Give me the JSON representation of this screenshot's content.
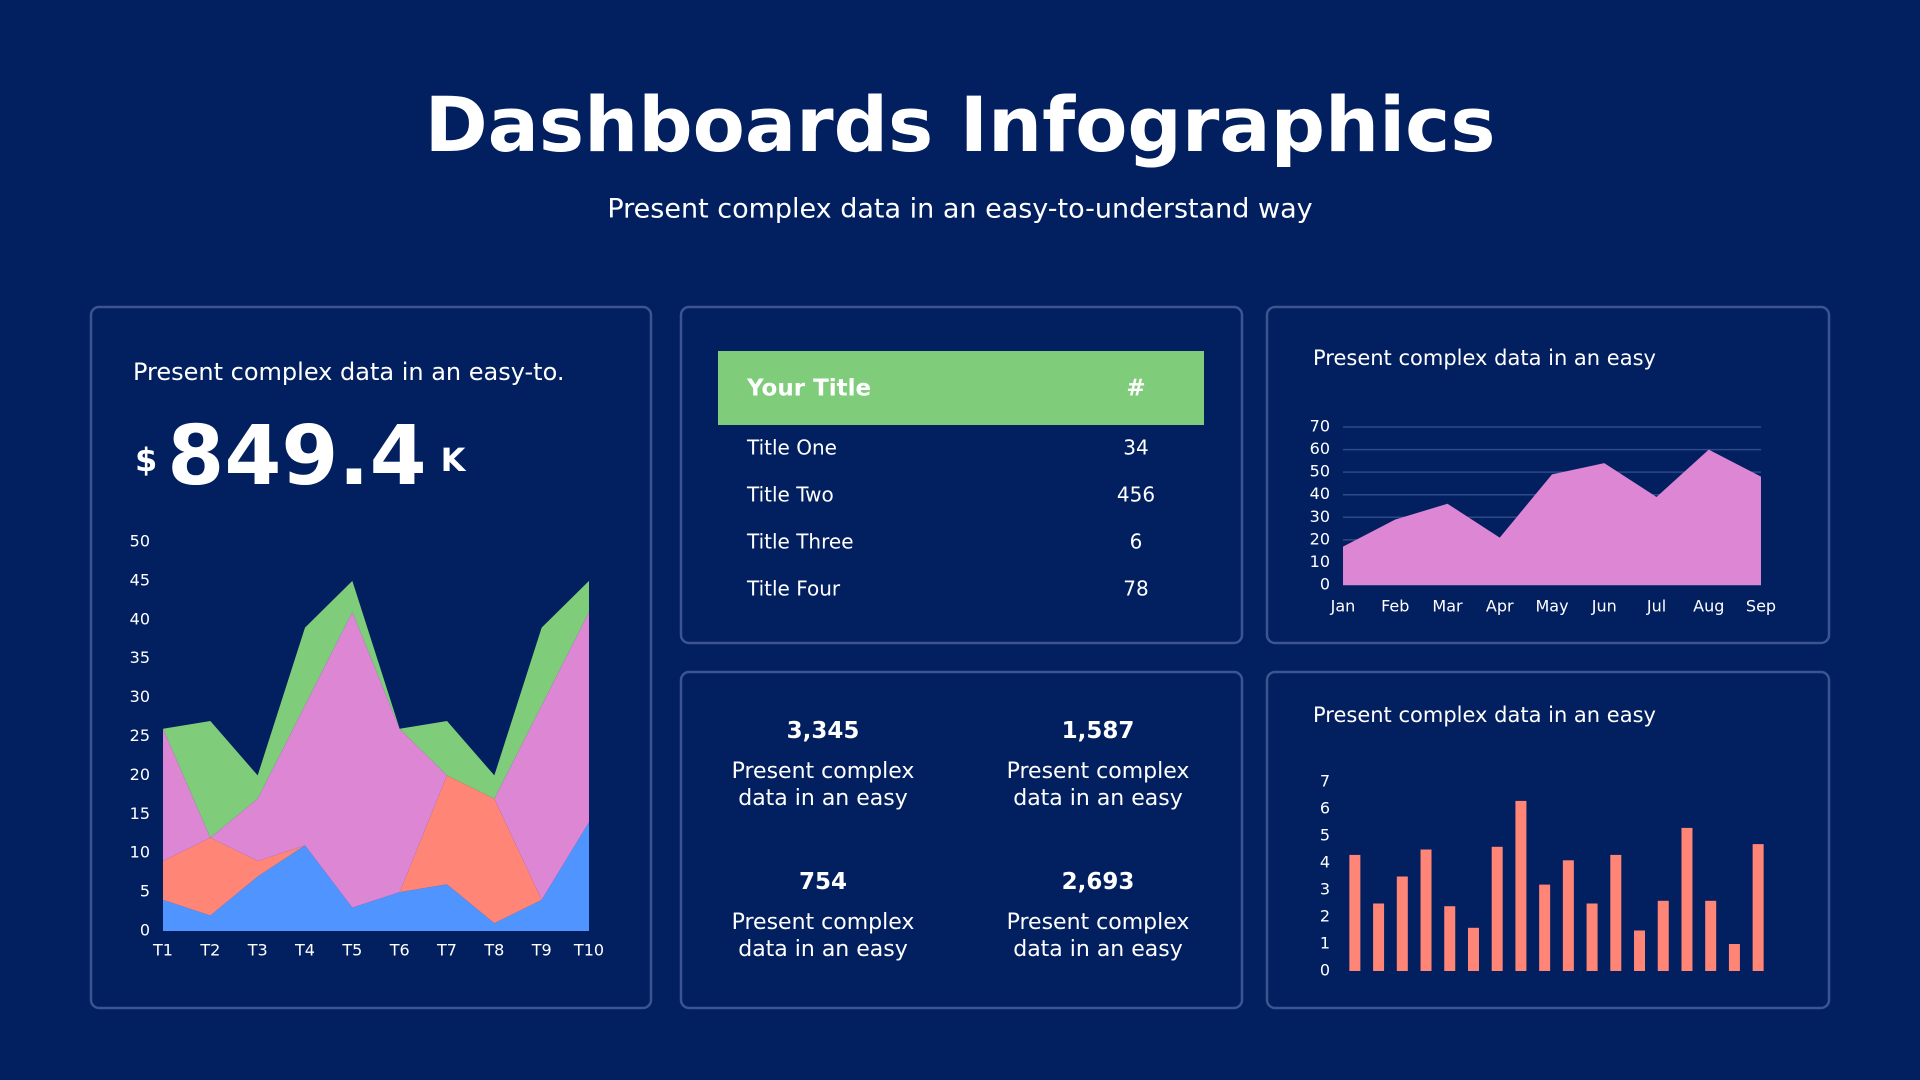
{
  "header": {
    "title": "Dashboards Infographics",
    "subtitle": "Present complex data in an easy-to-understand way"
  },
  "kpi": {
    "caption": "Present complex data in an easy-to.",
    "prefix": "$",
    "value": "849.4",
    "suffix": "K"
  },
  "table": {
    "header": [
      "Your Title",
      "#"
    ],
    "rows": [
      [
        "Title One",
        34
      ],
      [
        "Title Two",
        456
      ],
      [
        "Title Three",
        6
      ],
      [
        "Title Four",
        78
      ]
    ]
  },
  "stats": [
    {
      "value": "3,345",
      "text": "Present complex data in an easy"
    },
    {
      "value": "1,587",
      "text": "Present complex data in an easy"
    },
    {
      "value": "754",
      "text": "Present complex data in an easy"
    },
    {
      "value": "2,693",
      "text": "Present complex data in an easy"
    }
  ],
  "chart_data": [
    {
      "type": "area",
      "stacked": true,
      "categories": [
        "T1",
        "T2",
        "T3",
        "T4",
        "T5",
        "T6",
        "T7",
        "T8",
        "T9",
        "T10"
      ],
      "ylim": [
        0,
        50
      ],
      "yticks": [
        0,
        5,
        10,
        15,
        20,
        25,
        30,
        35,
        40,
        45,
        50
      ],
      "series": [
        {
          "color": "#4f94ff",
          "values": [
            4,
            2,
            7,
            11,
            3,
            5,
            6,
            1,
            4,
            14
          ]
        },
        {
          "color": "#ff8577",
          "values": [
            5,
            10,
            2,
            0,
            0,
            0,
            14,
            16,
            0,
            0
          ]
        },
        {
          "color": "#dd86d4",
          "values": [
            17,
            0,
            8,
            18,
            38,
            21,
            0,
            0,
            25,
            27
          ]
        },
        {
          "color": "#7fcd7b",
          "values": [
            0,
            15,
            3,
            10,
            4,
            0,
            7,
            3,
            10,
            4
          ]
        }
      ]
    },
    {
      "type": "area",
      "title": "Present complex data in an easy",
      "categories": [
        "Jan",
        "Feb",
        "Mar",
        "Apr",
        "May",
        "Jun",
        "Jul",
        "Aug",
        "Sep"
      ],
      "values": [
        17,
        29,
        36,
        21,
        49,
        54,
        39,
        60,
        48
      ],
      "color": "#dd86d4",
      "ylim": [
        0,
        70
      ],
      "yticks": [
        0,
        10,
        20,
        30,
        40,
        50,
        60,
        70
      ],
      "grid": true
    },
    {
      "type": "bar",
      "title": "Present complex data in an easy",
      "values": [
        4.3,
        2.5,
        3.5,
        4.5,
        2.4,
        1.6,
        4.6,
        6.3,
        3.2,
        4.1,
        2.5,
        4.3,
        1.5,
        2.6,
        5.3,
        2.6,
        1.0,
        4.7
      ],
      "color": "#ff8577",
      "ylim": [
        0,
        7
      ],
      "yticks": [
        0,
        1,
        2,
        3,
        4,
        5,
        6,
        7
      ]
    }
  ]
}
